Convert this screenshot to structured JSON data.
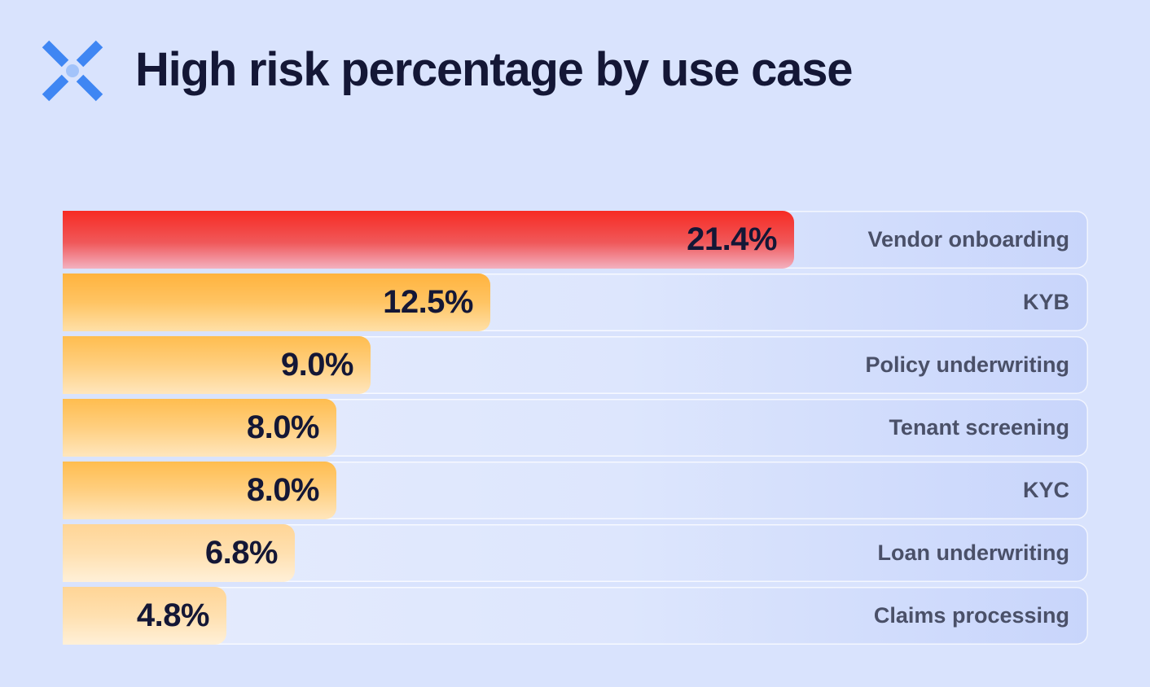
{
  "header": {
    "logo": "x-logo-icon",
    "title": "High risk percentage by use case"
  },
  "colors": {
    "background": "#d9e3fd",
    "highlight": "#f72b23",
    "bars": "#ffb33e",
    "text": "#141736",
    "label": "#4a5068"
  },
  "chart_data": {
    "type": "bar",
    "orientation": "horizontal",
    "title": "High risk percentage by use case",
    "xlabel": "",
    "ylabel": "",
    "xlim": [
      0,
      30
    ],
    "unit": "%",
    "categories": [
      "Vendor onboarding",
      "KYB",
      "Policy underwriting",
      "Tenant screening",
      "KYC",
      "Loan underwriting",
      "Claims processing"
    ],
    "values": [
      21.4,
      12.5,
      9.0,
      8.0,
      8.0,
      6.8,
      4.8
    ],
    "value_labels": [
      "21.4%",
      "12.5%",
      "9.0%",
      "8.0%",
      "8.0%",
      "6.8%",
      "4.8%"
    ]
  }
}
